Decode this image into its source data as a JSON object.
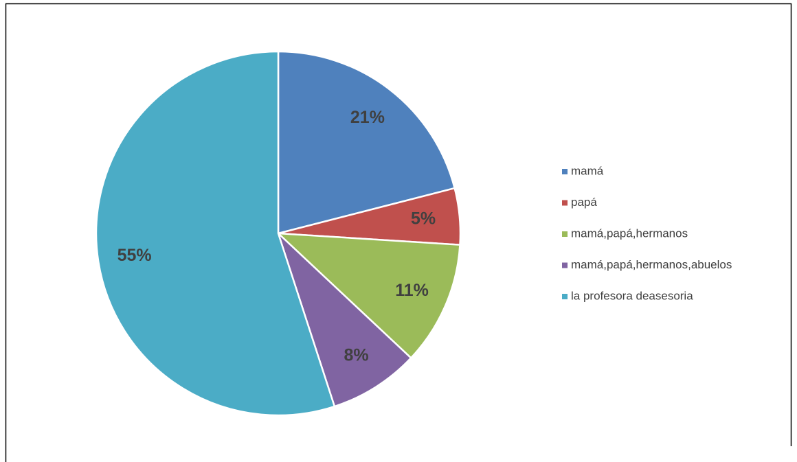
{
  "chart_data": {
    "type": "pie",
    "categories": [
      "mamá",
      "papá",
      "mamá,papá,hermanos",
      "mamá,papá,hermanos,abuelos",
      "la profesora deasesoria"
    ],
    "values": [
      21,
      5,
      11,
      8,
      55
    ],
    "value_labels": [
      "21%",
      "5%",
      "11%",
      "8%",
      "55%"
    ],
    "colors": [
      "#4f81bd",
      "#c0504d",
      "#9bbb59",
      "#8064a2",
      "#4bacc6"
    ],
    "legend": "right"
  }
}
